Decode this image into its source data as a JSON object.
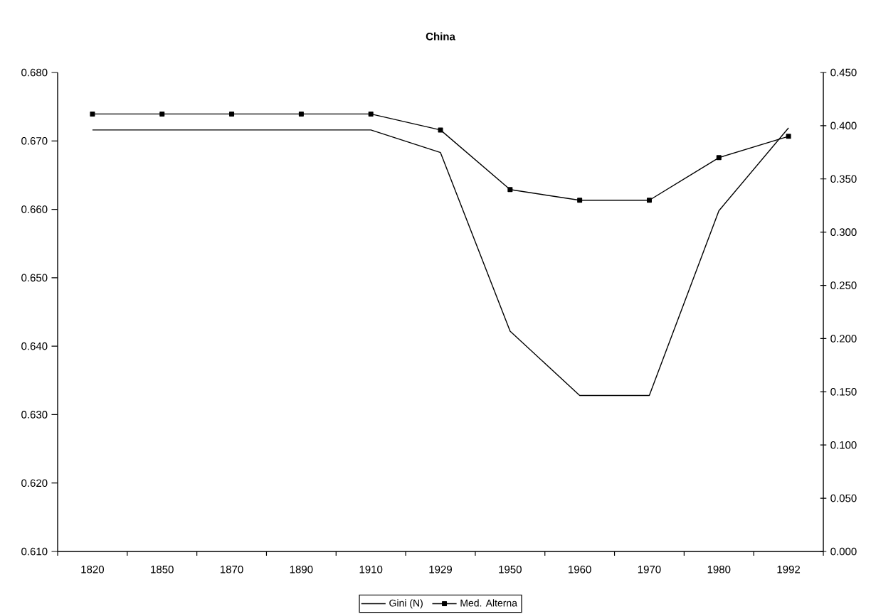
{
  "chart_data": {
    "type": "line",
    "title": "China",
    "categories": [
      "1820",
      "1850",
      "1870",
      "1890",
      "1910",
      "1929",
      "1950",
      "1960",
      "1970",
      "1980",
      "1992"
    ],
    "series": [
      {
        "name": "Gini (N)",
        "color": "#000000",
        "marker": "none",
        "values": [
          0.6716,
          0.6716,
          0.6716,
          0.6716,
          0.6716,
          0.6683,
          0.6422,
          0.6328,
          0.6328,
          0.6598,
          0.6719
        ]
      },
      {
        "name": "Med. Alterna",
        "color": "#000000",
        "marker": "square",
        "axis": "y2",
        "values": [
          0.411,
          0.411,
          0.411,
          0.411,
          0.411,
          0.396,
          0.34,
          0.33,
          0.33,
          0.37,
          0.39
        ]
      }
    ],
    "ylim": [
      0.61,
      0.68
    ],
    "yticks": [
      {
        "value": 0.61,
        "label": "0.610"
      },
      {
        "value": 0.62,
        "label": "0.620"
      },
      {
        "value": 0.63,
        "label": "0.630"
      },
      {
        "value": 0.64,
        "label": "0.640"
      },
      {
        "value": 0.65,
        "label": "0.650"
      },
      {
        "value": 0.66,
        "label": "0.660"
      },
      {
        "value": 0.67,
        "label": "0.670"
      },
      {
        "value": 0.68,
        "label": "0.680"
      }
    ],
    "y2lim": [
      0.0,
      0.45
    ],
    "y2ticks": [
      {
        "value": 0.0,
        "label": "0.000"
      },
      {
        "value": 0.05,
        "label": "0.050"
      },
      {
        "value": 0.1,
        "label": "0.100"
      },
      {
        "value": 0.15,
        "label": "0.150"
      },
      {
        "value": 0.2,
        "label": "0.200"
      },
      {
        "value": 0.25,
        "label": "0.250"
      },
      {
        "value": 0.3,
        "label": "0.300"
      },
      {
        "value": 0.35,
        "label": "0.350"
      },
      {
        "value": 0.4,
        "label": "0.400"
      },
      {
        "value": 0.45,
        "label": "0.450"
      }
    ],
    "legend": "bottom"
  }
}
